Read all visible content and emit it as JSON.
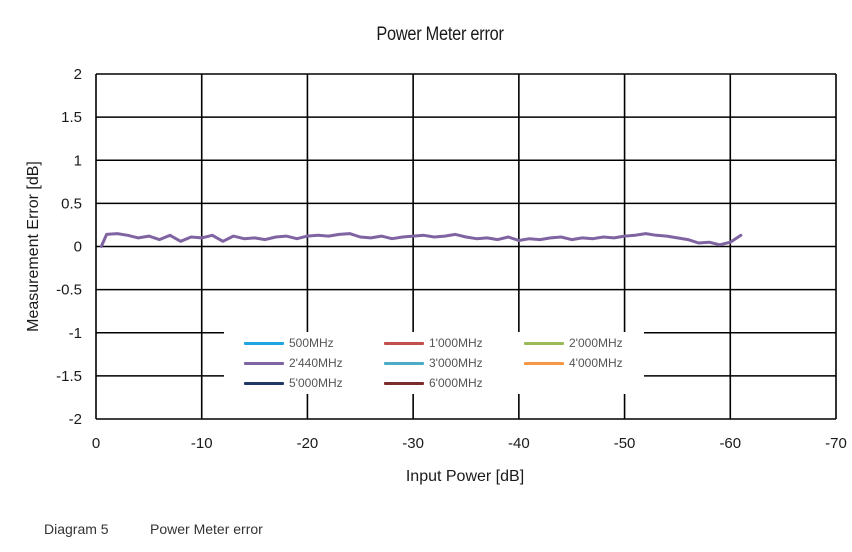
{
  "chart_data": {
    "type": "line",
    "title": "Power Meter error",
    "xlabel": "Input Power [dB]",
    "ylabel": "Measurement Error [dB]",
    "xlim": [
      0,
      -70
    ],
    "ylim": [
      -2,
      2
    ],
    "x_ticks": [
      "0",
      "-10",
      "-20",
      "-30",
      "-40",
      "-50",
      "-60",
      "-70"
    ],
    "y_ticks": [
      "2",
      "1.5",
      "1",
      "0.5",
      "0",
      "-0.5",
      "-1",
      "-1.5",
      "-2"
    ],
    "grid": true,
    "legend_position": "inside-lower-center",
    "legend": [
      {
        "name": "500MHz",
        "color": "#1fa6e0"
      },
      {
        "name": "1'000MHz",
        "color": "#c0504d"
      },
      {
        "name": "2'000MHz",
        "color": "#9bbb59"
      },
      {
        "name": "2'440MHz",
        "color": "#8064a2"
      },
      {
        "name": "3'000MHz",
        "color": "#4bacc6"
      },
      {
        "name": "4'000MHz",
        "color": "#f79646"
      },
      {
        "name": "5'000MHz",
        "color": "#1f3864"
      },
      {
        "name": "6'000MHz",
        "color": "#7b2c2c"
      }
    ],
    "series": [
      {
        "name": "2'440MHz",
        "color": "#8064a2",
        "x": [
          -0.5,
          -1,
          -2,
          -3,
          -4,
          -5,
          -6,
          -7,
          -8,
          -9,
          -10,
          -11,
          -12,
          -13,
          -14,
          -15,
          -16,
          -17,
          -18,
          -19,
          -20,
          -21,
          -22,
          -23,
          -24,
          -25,
          -26,
          -27,
          -28,
          -29,
          -30,
          -31,
          -32,
          -33,
          -34,
          -35,
          -36,
          -37,
          -38,
          -39,
          -40,
          -41,
          -42,
          -43,
          -44,
          -45,
          -46,
          -47,
          -48,
          -49,
          -50,
          -51,
          -52,
          -53,
          -54,
          -55,
          -56,
          -57,
          -58,
          -59,
          -60,
          -61
        ],
        "y": [
          0.0,
          0.14,
          0.15,
          0.13,
          0.1,
          0.12,
          0.08,
          0.13,
          0.06,
          0.11,
          0.1,
          0.13,
          0.06,
          0.12,
          0.09,
          0.1,
          0.08,
          0.11,
          0.12,
          0.09,
          0.12,
          0.13,
          0.12,
          0.14,
          0.15,
          0.11,
          0.1,
          0.12,
          0.09,
          0.11,
          0.12,
          0.13,
          0.11,
          0.12,
          0.14,
          0.11,
          0.09,
          0.1,
          0.08,
          0.11,
          0.07,
          0.09,
          0.08,
          0.1,
          0.11,
          0.08,
          0.1,
          0.09,
          0.11,
          0.1,
          0.12,
          0.13,
          0.15,
          0.13,
          0.12,
          0.1,
          0.08,
          0.04,
          0.05,
          0.02,
          0.05,
          0.13
        ]
      }
    ]
  },
  "caption": {
    "label": "Diagram 5",
    "text": "Power Meter error"
  }
}
